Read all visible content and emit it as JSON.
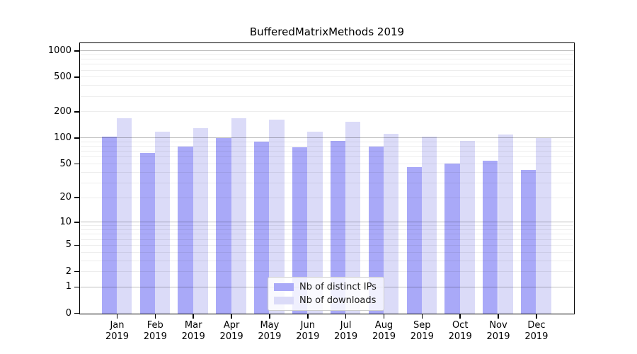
{
  "chart_data": {
    "type": "bar",
    "title": "BufferedMatrixMethods 2019",
    "categories": [
      "Jan",
      "Feb",
      "Mar",
      "Apr",
      "May",
      "Jun",
      "Jul",
      "Aug",
      "Sep",
      "Oct",
      "Nov",
      "Dec"
    ],
    "category_year": "2019",
    "series": [
      {
        "name": "Nb of distinct IPs",
        "color": "#a9a9f8",
        "values": [
          105,
          68,
          81,
          100,
          91,
          79,
          94,
          80,
          46,
          51,
          55,
          43
        ]
      },
      {
        "name": "Nb of downloads",
        "color": "#dbdbf8",
        "values": [
          170,
          120,
          131,
          170,
          165,
          120,
          156,
          112,
          104,
          93,
          110,
          101
        ]
      }
    ],
    "xlabel": "",
    "ylabel": "",
    "y_scale": "log1p",
    "y_tick_labels": [
      0,
      1,
      2,
      5,
      10,
      20,
      50,
      100,
      200,
      500,
      1000
    ],
    "y_grid_minor": [
      2,
      3,
      4,
      5,
      6,
      7,
      8,
      9,
      20,
      30,
      40,
      50,
      60,
      70,
      80,
      90,
      200,
      300,
      400,
      500,
      600,
      700,
      800,
      900
    ],
    "y_grid_major": [
      1,
      10,
      100,
      1000
    ],
    "ylim": [
      0,
      1256
    ],
    "grid": "horizontal",
    "legend_position": "inside-bottom-center",
    "colors": {
      "bar_dark": "#a9a9f8",
      "bar_light": "#dbdbf8",
      "grid_major": "#c4c4c4",
      "grid_minor": "#ececec",
      "axis": "#000000",
      "background": "#ffffff"
    }
  }
}
